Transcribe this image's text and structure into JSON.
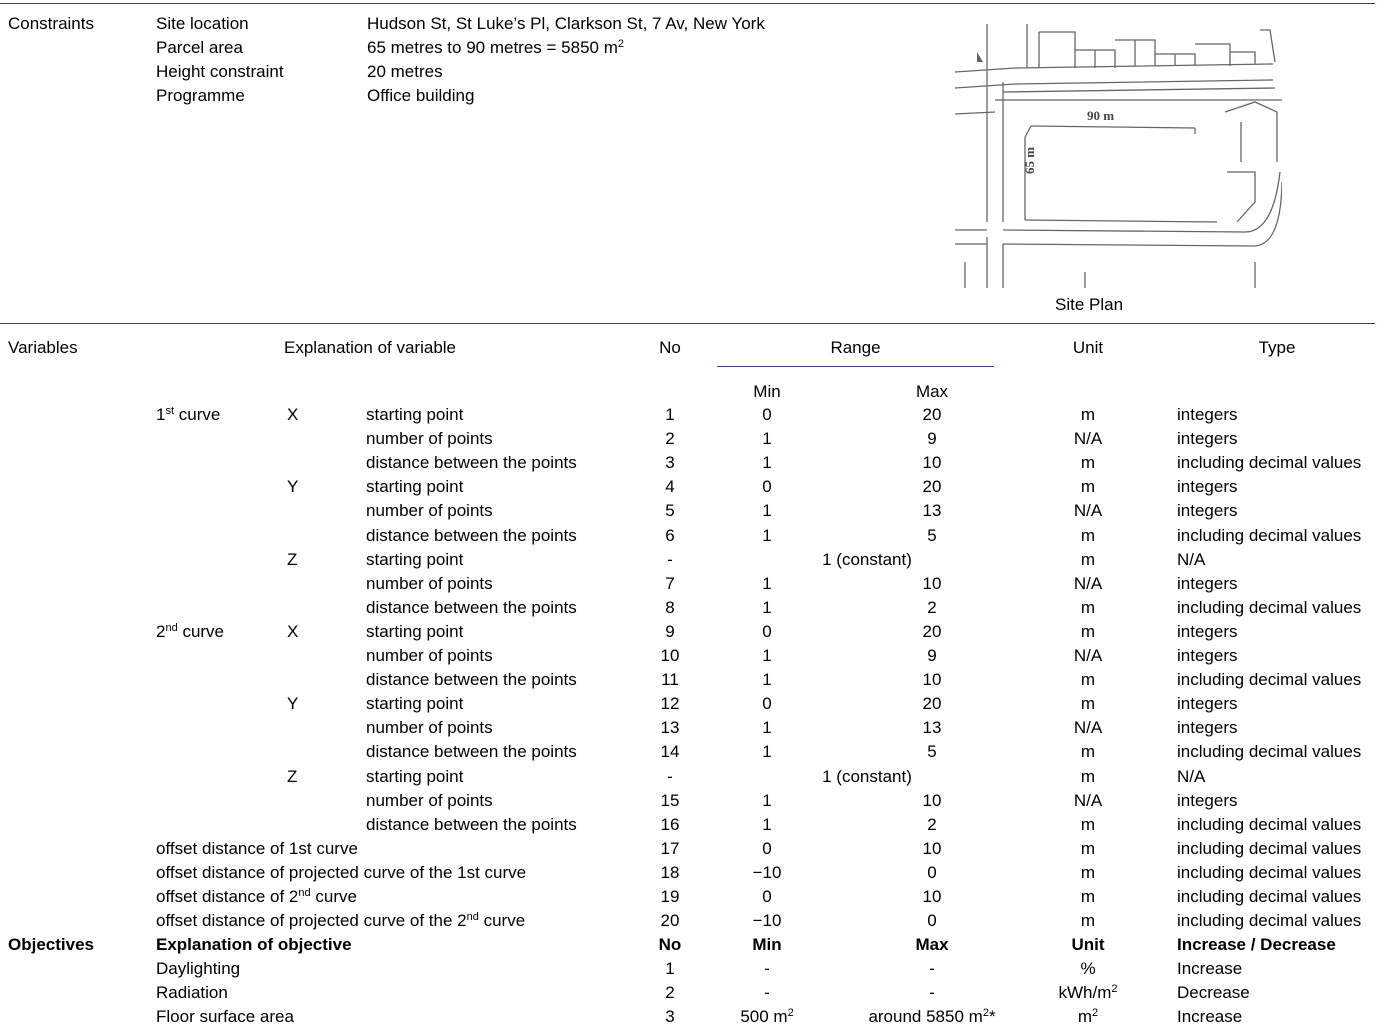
{
  "constraints": {
    "heading": "Constraints",
    "rows": [
      {
        "label": "Site location",
        "value": "Hudson St, St Luke’s Pl, Clarkson St, 7 Av, New York"
      },
      {
        "label": "Parcel area",
        "value": "65 metres to 90 metres = 5850 m",
        "sup": "2"
      },
      {
        "label": "Height constraint",
        "value": "20 metres"
      },
      {
        "label": "Programme",
        "value": "Office building"
      }
    ],
    "site_plan": {
      "caption": "Site Plan",
      "dim_width": "90 m",
      "dim_depth": "65 m"
    }
  },
  "variables": {
    "heading": "Variables",
    "headers": {
      "explanation": "Explanation of variable",
      "no": "No",
      "range": "Range",
      "min": "Min",
      "max": "Max",
      "unit": "Unit",
      "type": "Type"
    },
    "curves": [
      {
        "label": "1",
        "sup": "st",
        "suffix": " curve"
      },
      {
        "label": "2",
        "sup": "nd",
        "suffix": " curve"
      }
    ],
    "rows": [
      {
        "curve": 0,
        "axis": "X",
        "desc": "starting point",
        "no": "1",
        "min": "0",
        "max": "20",
        "unit": "m",
        "type": "integers"
      },
      {
        "axis": "",
        "desc": "number of points",
        "no": "2",
        "min": "1",
        "max": "9",
        "unit": "N/A",
        "type": "integers"
      },
      {
        "axis": "",
        "desc": "distance between the points",
        "no": "3",
        "min": "1",
        "max": "10",
        "unit": "m",
        "type": "including decimal values"
      },
      {
        "axis": "Y",
        "desc": "starting point",
        "no": "4",
        "min": "0",
        "max": "20",
        "unit": "m",
        "type": "integers"
      },
      {
        "axis": "",
        "desc": "number of points",
        "no": "5",
        "min": "1",
        "max": "13",
        "unit": "N/A",
        "type": "integers"
      },
      {
        "axis": "",
        "desc": "distance between the points",
        "no": "6",
        "min": "1",
        "max": "5",
        "unit": "m",
        "type": "including decimal values"
      },
      {
        "axis": "Z",
        "desc": "starting point",
        "no": "-",
        "constant": "1 (constant)",
        "unit": "m",
        "type": "N/A"
      },
      {
        "axis": "",
        "desc": "number of points",
        "no": "7",
        "min": "1",
        "max": "10",
        "unit": "N/A",
        "type": "integers"
      },
      {
        "axis": "",
        "desc": "distance between the points",
        "no": "8",
        "min": "1",
        "max": "2",
        "unit": "m",
        "type": "including decimal values"
      },
      {
        "curve": 1,
        "axis": "X",
        "desc": "starting point",
        "no": "9",
        "min": "0",
        "max": "20",
        "unit": "m",
        "type": "integers"
      },
      {
        "axis": "",
        "desc": "number of points",
        "no": "10",
        "min": "1",
        "max": "9",
        "unit": "N/A",
        "type": "integers"
      },
      {
        "axis": "",
        "desc": "distance between the points",
        "no": "11",
        "min": "1",
        "max": "10",
        "unit": "m",
        "type": "including decimal values"
      },
      {
        "axis": "Y",
        "desc": "starting point",
        "no": "12",
        "min": "0",
        "max": "20",
        "unit": "m",
        "type": "integers"
      },
      {
        "axis": "",
        "desc": "number of points",
        "no": "13",
        "min": "1",
        "max": "13",
        "unit": "N/A",
        "type": "integers"
      },
      {
        "axis": "",
        "desc": "distance between the points",
        "no": "14",
        "min": "1",
        "max": "5",
        "unit": "m",
        "type": "including decimal values"
      },
      {
        "axis": "Z",
        "desc": "starting point",
        "no": "-",
        "constant": "1 (constant)",
        "unit": "m",
        "type": "N/A"
      },
      {
        "axis": "",
        "desc": "number of points",
        "no": "15",
        "min": "1",
        "max": "10",
        "unit": "N/A",
        "type": "integers"
      },
      {
        "axis": "",
        "desc": "distance between the points",
        "no": "16",
        "min": "1",
        "max": "2",
        "unit": "m",
        "type": "including decimal values"
      }
    ],
    "offsets": [
      {
        "desc": "offset distance of 1st curve",
        "no": "17",
        "min": "0",
        "max": "10",
        "unit": "m",
        "type": "including decimal values"
      },
      {
        "desc": "offset distance of projected curve of the 1st curve",
        "no": "18",
        "min": "−10",
        "max": "0",
        "unit": "m",
        "type": "including decimal values"
      },
      {
        "desc": "offset distance of 2",
        "desc_sup": "nd",
        "desc_after": " curve",
        "no": "19",
        "min": "0",
        "max": "10",
        "unit": "m",
        "type": "including decimal values"
      },
      {
        "desc": "offset distance of projected curve of the 2",
        "desc_sup": "nd",
        "desc_after": " curve",
        "no": "20",
        "min": "−10",
        "max": "0",
        "unit": "m",
        "type": "including decimal values"
      }
    ]
  },
  "objectives": {
    "heading": "Objectives",
    "headers": {
      "explanation": "Explanation of objective",
      "no": "No",
      "min": "Min",
      "max": "Max",
      "unit": "Unit",
      "type": "Increase / Decrease"
    },
    "rows": [
      {
        "desc": "Daylighting",
        "no": "1",
        "min": "-",
        "max": "-",
        "unit": "%",
        "type": "Increase"
      },
      {
        "desc": "Radiation",
        "no": "2",
        "min": "-",
        "max": "-",
        "unit": "kWh/m",
        "unit_sup": "2",
        "type": "Decrease"
      },
      {
        "desc": "Floor surface area",
        "no": "3",
        "min": "500 m",
        "min_sup": "2",
        "max": "around 5850 m",
        "max_sup": "2",
        "max_after": "*",
        "unit": "m",
        "unit_sup": "2",
        "type": "Increase"
      }
    ]
  }
}
